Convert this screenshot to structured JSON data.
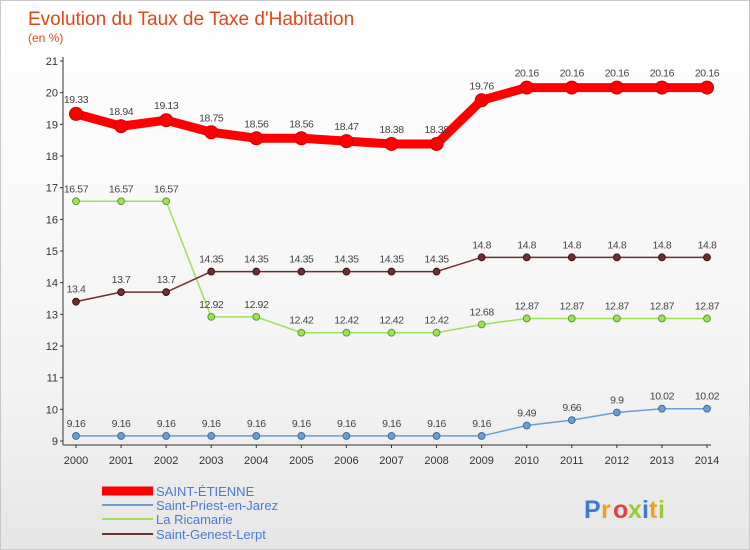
{
  "chart_data": {
    "type": "line",
    "title": "Evolution du Taux de Taxe d'Habitation",
    "subtitle": "(en %)",
    "x": [
      "2000",
      "2001",
      "2002",
      "2003",
      "2004",
      "2005",
      "2006",
      "2007",
      "2008",
      "2009",
      "2010",
      "2011",
      "2012",
      "2013",
      "2014"
    ],
    "ylim": [
      9,
      21
    ],
    "yticks": [
      "9",
      "10",
      "11",
      "12",
      "13",
      "14",
      "15",
      "16",
      "17",
      "18",
      "19",
      "20",
      "21"
    ],
    "grid": false,
    "legend_position": "bottom-left",
    "series": [
      {
        "name": "SAINT-ÉTIENNE",
        "color": "#ff0000",
        "values": [
          19.33,
          18.94,
          19.13,
          18.75,
          18.56,
          18.56,
          18.47,
          18.38,
          18.38,
          19.76,
          20.16,
          20.16,
          20.16,
          20.16,
          20.16
        ],
        "labels": [
          "19.33",
          "18.94",
          "19.13",
          "18.75",
          "18.56",
          "18.56",
          "18.47",
          "18.38",
          "18.38",
          "19.76",
          "20.16",
          "20.16",
          "20.16",
          "20.16",
          "20.16"
        ]
      },
      {
        "name": "Saint-Priest-en-Jarez",
        "color": "#6a9fd0",
        "values": [
          9.16,
          9.16,
          9.16,
          9.16,
          9.16,
          9.16,
          9.16,
          9.16,
          9.16,
          9.16,
          9.49,
          9.66,
          9.9,
          10.02,
          10.02
        ],
        "labels": [
          "9.16",
          "9.16",
          "9.16",
          "9.16",
          "9.16",
          "9.16",
          "9.16",
          "9.16",
          "9.16",
          "9.16",
          "9.49",
          "9.66",
          "9.9",
          "10.02",
          "10.02"
        ]
      },
      {
        "name": "La Ricamarie",
        "color": "#9ee05a",
        "values": [
          16.57,
          16.57,
          16.57,
          12.92,
          12.92,
          12.42,
          12.42,
          12.42,
          12.42,
          12.68,
          12.87,
          12.87,
          12.87,
          12.87,
          12.87
        ],
        "labels": [
          "16.57",
          "16.57",
          "16.57",
          "12.92",
          "12.92",
          "12.42",
          "12.42",
          "12.42",
          "12.42",
          "12.68",
          "12.87",
          "12.87",
          "12.87",
          "12.87",
          "12.87"
        ]
      },
      {
        "name": "Saint-Genest-Lerpt",
        "color": "#6e2f2f",
        "values": [
          13.4,
          13.7,
          13.7,
          14.35,
          14.35,
          14.35,
          14.35,
          14.35,
          14.35,
          14.8,
          14.8,
          14.8,
          14.8,
          14.8,
          14.8
        ],
        "labels": [
          "13.4",
          "13.7",
          "13.7",
          "14.35",
          "14.35",
          "14.35",
          "14.35",
          "14.35",
          "14.35",
          "14.8",
          "14.8",
          "14.8",
          "14.8",
          "14.8",
          "14.8"
        ]
      }
    ]
  },
  "logo": {
    "letters": [
      "P",
      "r",
      "o",
      "x",
      "i",
      "t",
      "i"
    ],
    "colors": [
      "#3a7bd5",
      "#f0a020",
      "#e04040",
      "#9acd32",
      "#3a7bd5",
      "#f0a020",
      "#9acd32"
    ]
  }
}
